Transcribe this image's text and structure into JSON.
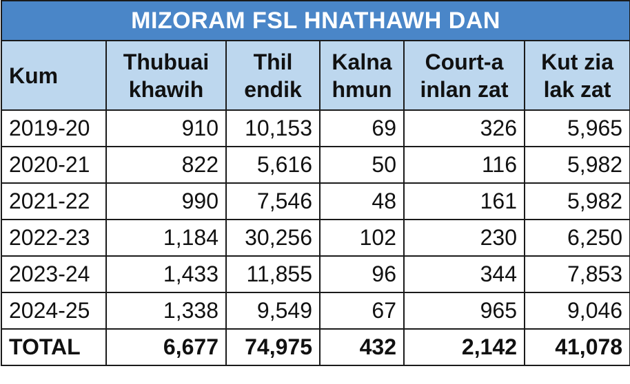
{
  "title": "MIZORAM FSL HNATHAWH DAN",
  "table": {
    "header": [
      "Kum",
      "Thubuai\nkhawih",
      "Thil\nendik",
      "Kalna\nhmun",
      "Court-a\ninlan zat",
      "Kut zia\nlak zat"
    ],
    "rows": [
      [
        "2019-20",
        "910",
        "10,153",
        "69",
        "326",
        "5,965"
      ],
      [
        "2020-21",
        "822",
        "5,616",
        "50",
        "116",
        "5,982"
      ],
      [
        "2021-22",
        "990",
        "7,546",
        "48",
        "161",
        "5,982"
      ],
      [
        "2022-23",
        "1,184",
        "30,256",
        "102",
        "230",
        "6,250"
      ],
      [
        "2023-24",
        "1,433",
        "11,855",
        "96",
        "344",
        "7,853"
      ],
      [
        "2024-25",
        "1,338",
        "9,549",
        "67",
        "965",
        "9,046"
      ]
    ],
    "total": [
      "TOTAL",
      "6,677",
      "74,975",
      "432",
      "2,142",
      "41,078"
    ]
  }
}
